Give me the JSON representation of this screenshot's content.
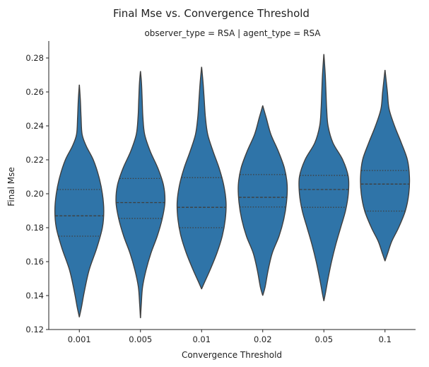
{
  "figure_title": "Final Mse vs. Convergence Threshold",
  "facet_title": "observer_type = RSA | agent_type = RSA",
  "chart_data": {
    "type": "violin",
    "title": "Final Mse vs. Convergence Threshold",
    "subtitle": "observer_type = RSA | agent_type = RSA",
    "xlabel": "Convergence Threshold",
    "ylabel": "Final Mse",
    "categories": [
      "0.001",
      "0.005",
      "0.01",
      "0.02",
      "0.05",
      "0.1"
    ],
    "ylim": [
      0.12,
      0.29
    ],
    "yticks": [
      "0.12",
      "0.14",
      "0.16",
      "0.18",
      "0.20",
      "0.22",
      "0.24",
      "0.26",
      "0.28"
    ],
    "color": "#2f74a8",
    "edge_color": "#3f3f3f",
    "grid": false,
    "legend": "none",
    "violins": [
      {
        "category": "0.001",
        "min": 0.1275,
        "max": 0.264,
        "q1": 0.175,
        "median": 0.187,
        "q3": 0.2025,
        "profile": [
          [
            0.1275,
            0.001
          ],
          [
            0.133,
            0.03
          ],
          [
            0.142,
            0.07
          ],
          [
            0.155,
            0.14
          ],
          [
            0.168,
            0.25
          ],
          [
            0.18,
            0.33
          ],
          [
            0.19,
            0.35
          ],
          [
            0.2,
            0.33
          ],
          [
            0.21,
            0.28
          ],
          [
            0.22,
            0.2
          ],
          [
            0.228,
            0.1
          ],
          [
            0.235,
            0.04
          ],
          [
            0.245,
            0.025
          ],
          [
            0.255,
            0.015
          ],
          [
            0.264,
            0.001
          ]
        ]
      },
      {
        "category": "0.005",
        "min": 0.127,
        "max": 0.272,
        "q1": 0.1855,
        "median": 0.1948,
        "q3": 0.209,
        "profile": [
          [
            0.127,
            0.001
          ],
          [
            0.135,
            0.012
          ],
          [
            0.145,
            0.03
          ],
          [
            0.155,
            0.08
          ],
          [
            0.165,
            0.15
          ],
          [
            0.175,
            0.24
          ],
          [
            0.185,
            0.31
          ],
          [
            0.195,
            0.35
          ],
          [
            0.205,
            0.33
          ],
          [
            0.215,
            0.25
          ],
          [
            0.225,
            0.14
          ],
          [
            0.235,
            0.06
          ],
          [
            0.245,
            0.035
          ],
          [
            0.255,
            0.025
          ],
          [
            0.265,
            0.015
          ],
          [
            0.272,
            0.001
          ]
        ]
      },
      {
        "category": "0.01",
        "min": 0.144,
        "max": 0.2745,
        "q1": 0.18,
        "median": 0.192,
        "q3": 0.2095,
        "profile": [
          [
            0.144,
            0.001
          ],
          [
            0.148,
            0.04
          ],
          [
            0.155,
            0.11
          ],
          [
            0.165,
            0.2
          ],
          [
            0.175,
            0.27
          ],
          [
            0.185,
            0.31
          ],
          [
            0.195,
            0.32
          ],
          [
            0.205,
            0.29
          ],
          [
            0.215,
            0.23
          ],
          [
            0.225,
            0.15
          ],
          [
            0.235,
            0.08
          ],
          [
            0.245,
            0.05
          ],
          [
            0.255,
            0.035
          ],
          [
            0.265,
            0.02
          ],
          [
            0.2745,
            0.001
          ]
        ]
      },
      {
        "category": "0.02",
        "min": 0.1402,
        "max": 0.2518,
        "q1": 0.1922,
        "median": 0.1979,
        "q3": 0.2113,
        "profile": [
          [
            0.1402,
            0.001
          ],
          [
            0.145,
            0.035
          ],
          [
            0.155,
            0.08
          ],
          [
            0.165,
            0.14
          ],
          [
            0.175,
            0.24
          ],
          [
            0.185,
            0.31
          ],
          [
            0.195,
            0.35
          ],
          [
            0.205,
            0.36
          ],
          [
            0.215,
            0.32
          ],
          [
            0.225,
            0.23
          ],
          [
            0.235,
            0.12
          ],
          [
            0.245,
            0.05
          ],
          [
            0.2518,
            0.001
          ]
        ]
      },
      {
        "category": "0.05",
        "min": 0.137,
        "max": 0.282,
        "q1": 0.192,
        "median": 0.2025,
        "q3": 0.2108,
        "profile": [
          [
            0.137,
            0.001
          ],
          [
            0.142,
            0.025
          ],
          [
            0.15,
            0.06
          ],
          [
            0.16,
            0.11
          ],
          [
            0.17,
            0.17
          ],
          [
            0.18,
            0.24
          ],
          [
            0.19,
            0.31
          ],
          [
            0.2,
            0.35
          ],
          [
            0.21,
            0.35
          ],
          [
            0.22,
            0.27
          ],
          [
            0.23,
            0.13
          ],
          [
            0.24,
            0.06
          ],
          [
            0.25,
            0.04
          ],
          [
            0.26,
            0.03
          ],
          [
            0.27,
            0.02
          ],
          [
            0.282,
            0.001
          ]
        ]
      },
      {
        "category": "0.1",
        "min": 0.1605,
        "max": 0.2727,
        "q1": 0.1898,
        "median": 0.2057,
        "q3": 0.2137,
        "profile": [
          [
            0.1605,
            0.001
          ],
          [
            0.165,
            0.04
          ],
          [
            0.172,
            0.1
          ],
          [
            0.18,
            0.2
          ],
          [
            0.19,
            0.3
          ],
          [
            0.2,
            0.35
          ],
          [
            0.21,
            0.36
          ],
          [
            0.22,
            0.33
          ],
          [
            0.23,
            0.24
          ],
          [
            0.24,
            0.14
          ],
          [
            0.25,
            0.06
          ],
          [
            0.26,
            0.035
          ],
          [
            0.2727,
            0.001
          ]
        ]
      }
    ]
  }
}
